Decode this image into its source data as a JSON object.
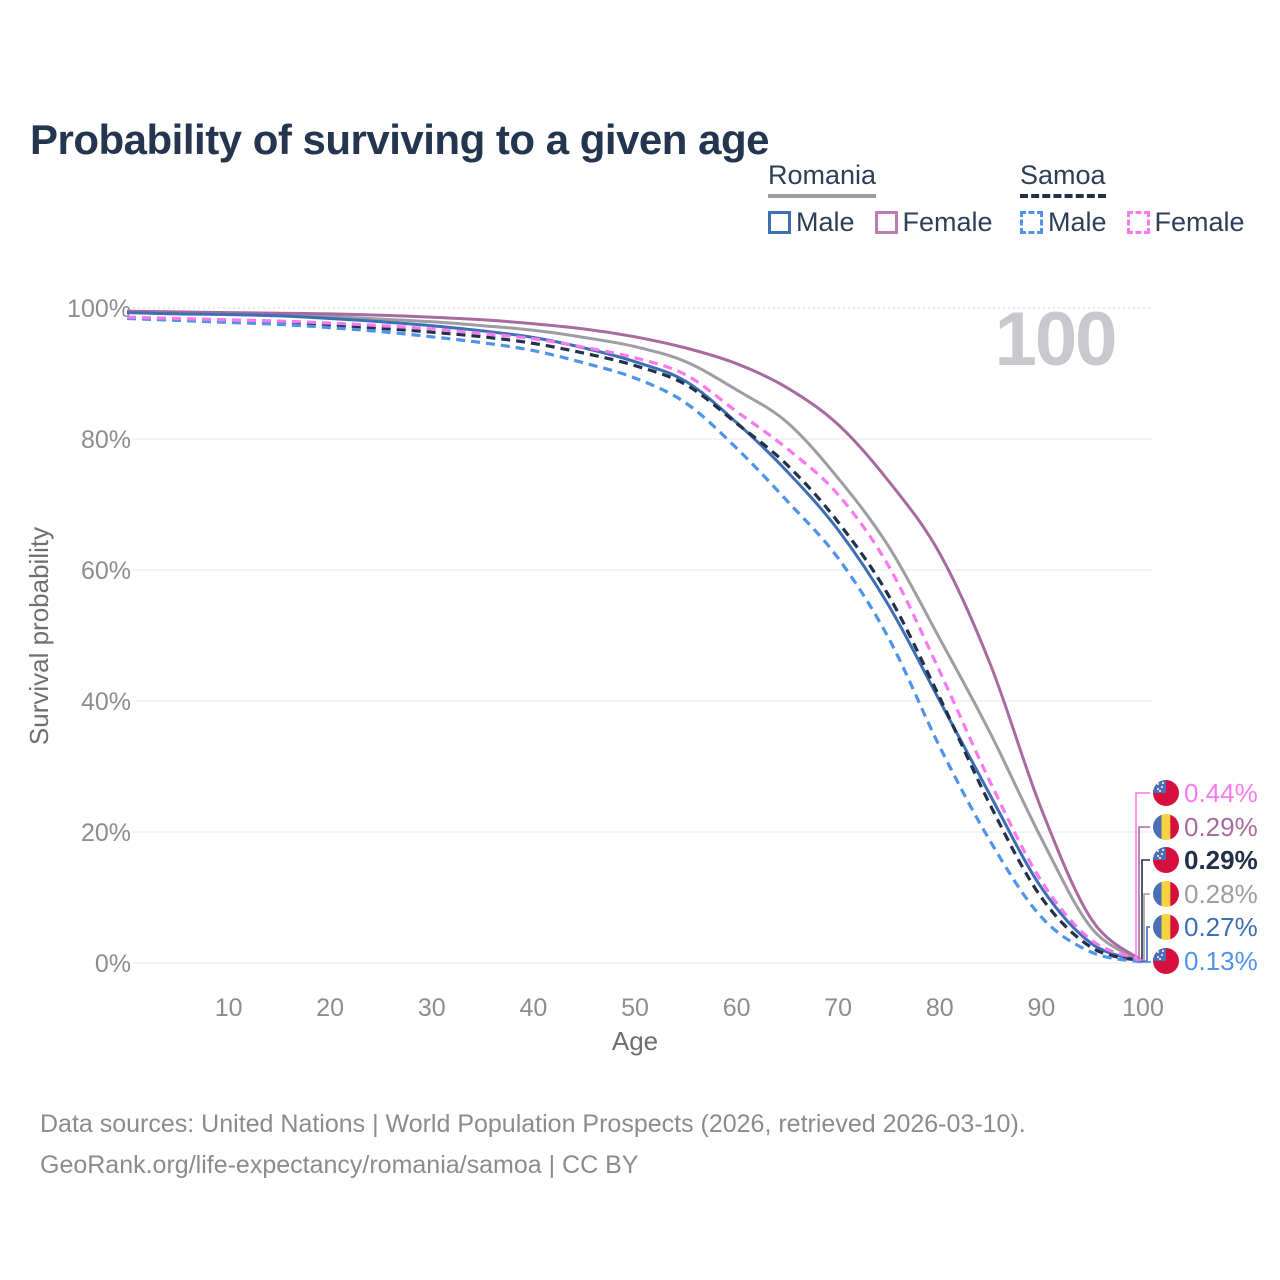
{
  "title": "Probability of surviving to a given age",
  "watermark": "100",
  "legend": {
    "groups": [
      {
        "label": "Romania",
        "underline_style": "solid",
        "underline_color": "#9d9da3",
        "items": [
          {
            "label": "Male",
            "color": "#3d6fb4",
            "dashed": false
          },
          {
            "label": "Female",
            "color": "#bd7cb3",
            "dashed": false
          }
        ]
      },
      {
        "label": "Samoa",
        "underline_style": "dashed",
        "underline_color": "#233049",
        "items": [
          {
            "label": "Male",
            "color": "#4f93ea",
            "dashed": true
          },
          {
            "label": "Female",
            "color": "#fb79ef",
            "dashed": true
          }
        ]
      }
    ]
  },
  "chart_data": {
    "type": "line",
    "title": "Probability of surviving to a given age",
    "xlabel": "Age",
    "ylabel": "Survival probability",
    "xlim": [
      0,
      100
    ],
    "ylim": [
      0,
      100
    ],
    "grid": "horizontal",
    "x_ticks": [
      10,
      20,
      30,
      40,
      50,
      60,
      70,
      80,
      90,
      100
    ],
    "y_ticks": [
      {
        "value": 0,
        "label": "0%"
      },
      {
        "value": 20,
        "label": "20%"
      },
      {
        "value": 40,
        "label": "40%"
      },
      {
        "value": 60,
        "label": "60%"
      },
      {
        "value": 80,
        "label": "80%"
      },
      {
        "value": 100,
        "label": "100%"
      }
    ],
    "ages": [
      0,
      5,
      10,
      15,
      20,
      25,
      30,
      35,
      40,
      45,
      50,
      55,
      60,
      65,
      70,
      75,
      80,
      85,
      90,
      95,
      100
    ],
    "series": [
      {
        "name": "Romania",
        "country": "Romania",
        "sex": "Both",
        "color": "#9d9da3",
        "dashed": false,
        "flag": "ro",
        "end_label": "0.28%",
        "label_row": 3,
        "values": [
          99.4,
          99.25,
          99.1,
          98.95,
          98.7,
          98.3,
          97.9,
          97.3,
          96.6,
          95.5,
          94.1,
          91.8,
          87.5,
          82.5,
          74.0,
          63.5,
          49.5,
          35.0,
          19.0,
          5.2,
          0.28
        ]
      },
      {
        "name": "Romania Female",
        "country": "Romania",
        "sex": "Female",
        "color": "#a86ba0",
        "dashed": false,
        "flag": "ro",
        "end_label": "0.29%",
        "label_row": 1,
        "values": [
          99.5,
          99.4,
          99.3,
          99.2,
          99.1,
          98.9,
          98.6,
          98.2,
          97.6,
          96.8,
          95.6,
          93.9,
          91.5,
          87.8,
          82.2,
          73.5,
          62.5,
          45.5,
          23.5,
          6.5,
          0.29
        ]
      },
      {
        "name": "Romania Male",
        "country": "Romania",
        "sex": "Male",
        "color": "#3d6fb4",
        "dashed": false,
        "flag": "ro",
        "end_label": "0.27%",
        "label_row": 4,
        "values": [
          99.3,
          99.1,
          99.0,
          98.8,
          98.4,
          97.9,
          97.3,
          96.5,
          95.5,
          93.9,
          91.8,
          88.8,
          82.5,
          75.0,
          66.1,
          54.5,
          40.0,
          25.5,
          11.5,
          2.9,
          0.27
        ]
      },
      {
        "name": "Samoa",
        "country": "Samoa",
        "sex": "Both",
        "color": "#233049",
        "dashed": true,
        "flag": "ws",
        "end_label": "0.29%",
        "label_row": 2,
        "values": [
          98.5,
          98.25,
          98.1,
          97.9,
          97.4,
          96.9,
          96.3,
          95.6,
          94.6,
          93.1,
          91.2,
          88.3,
          82.4,
          76.0,
          67.3,
          56.0,
          40.5,
          24.0,
          10.0,
          2.3,
          0.29
        ]
      },
      {
        "name": "Samoa Male",
        "country": "Samoa",
        "sex": "Male",
        "color": "#4f93ea",
        "dashed": true,
        "flag": "ws",
        "end_label": "0.13%",
        "label_row": 5,
        "values": [
          98.4,
          98.1,
          97.8,
          97.5,
          97.0,
          96.4,
          95.6,
          94.7,
          93.5,
          91.6,
          89.3,
          85.5,
          78.6,
          70.5,
          61.8,
          49.5,
          33.0,
          18.5,
          7.0,
          1.6,
          0.13
        ]
      },
      {
        "name": "Samoa Female",
        "country": "Samoa",
        "sex": "Female",
        "color": "#fb79ef",
        "dashed": true,
        "flag": "ws",
        "end_label": "0.44%",
        "label_row": 0,
        "values": [
          98.6,
          98.4,
          98.2,
          98.0,
          97.7,
          97.3,
          96.8,
          96.1,
          95.3,
          94.0,
          92.4,
          89.8,
          84.2,
          78.5,
          71.5,
          60.5,
          44.5,
          27.5,
          12.5,
          3.4,
          0.44
        ]
      }
    ],
    "flag_colors": {
      "romania_blue": "#4a6fb5",
      "romania_yellow": "#f6d33c",
      "romania_red": "#d60f3f",
      "samoa_red": "#d60f3f",
      "samoa_blue": "#4a6fb5",
      "samoa_star": "#ffffff"
    }
  },
  "footer": {
    "line1": "Data sources: United Nations | World Population Prospects (2026, retrieved 2026-03-10).",
    "line2": "GeoRank.org/life-expectancy/romania/samoa | CC BY"
  }
}
